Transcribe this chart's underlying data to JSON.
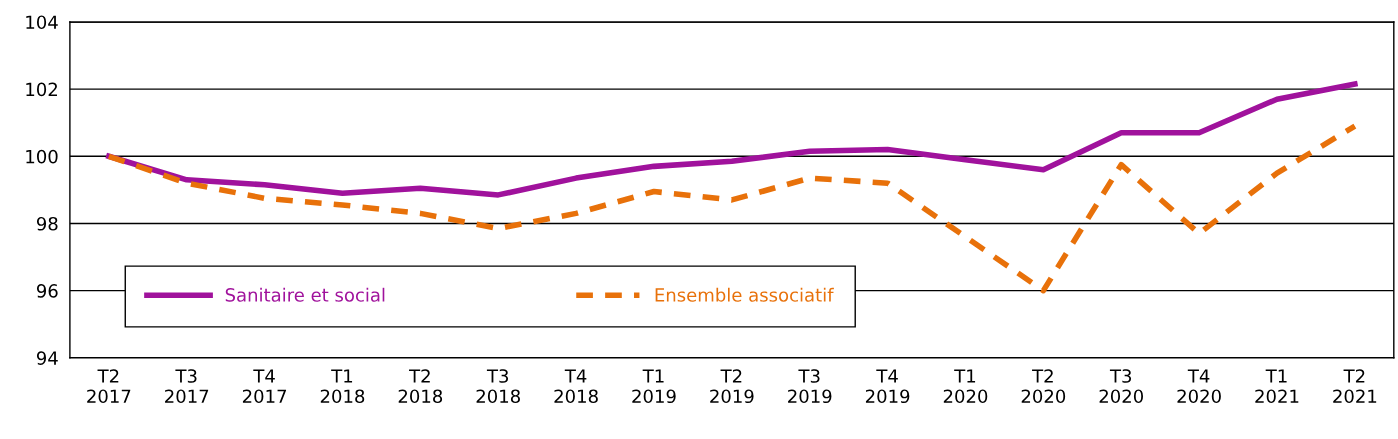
{
  "chart_data": {
    "type": "line",
    "categories": [
      "T2\n2017",
      "T3\n2017",
      "T4\n2017",
      "T1\n2018",
      "T2\n2018",
      "T3\n2018",
      "T4\n2018",
      "T1\n2019",
      "T2\n2019",
      "T3\n2019",
      "T4\n2019",
      "T1\n2020",
      "T2\n2020",
      "T3\n2020",
      "T4\n2020",
      "T1\n2021",
      "T2\n2021"
    ],
    "series": [
      {
        "name": "Sanitaire et social",
        "color": "#a0129c",
        "line_style": "solid",
        "values": [
          100,
          99.3,
          99.15,
          98.9,
          99.05,
          98.85,
          99.35,
          99.7,
          99.85,
          100.15,
          100.2,
          99.9,
          99.6,
          100.7,
          100.7,
          101.7,
          102.15
        ]
      },
      {
        "name": "Ensemble associatif",
        "color": "#e8710a",
        "line_style": "dashed",
        "values": [
          100,
          99.2,
          98.75,
          98.55,
          98.3,
          97.85,
          98.3,
          98.95,
          98.7,
          99.35,
          99.2,
          97.6,
          96.0,
          99.75,
          97.7,
          99.5,
          100.9
        ]
      }
    ],
    "ylim": [
      94,
      104
    ],
    "yticks": [
      94,
      96,
      98,
      100,
      102,
      104
    ],
    "grid": "y",
    "legend": "bottom left",
    "marker": "none"
  }
}
